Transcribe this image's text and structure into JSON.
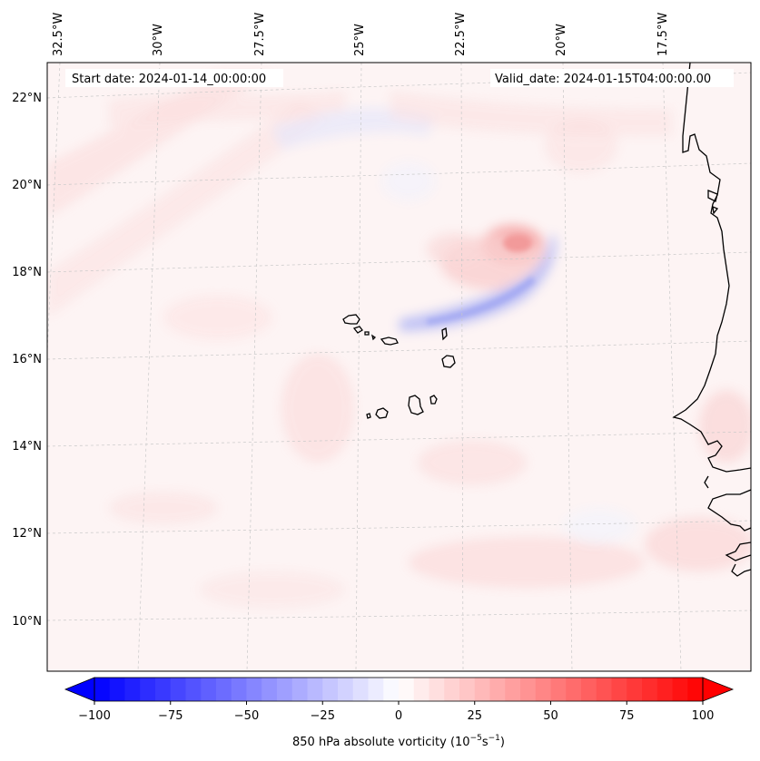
{
  "map": {
    "start_label": "Start date: 2024-01-14_00:00:00",
    "valid_label": "Valid_date: 2024-01-15T04:00:00.00",
    "lon_labels": [
      "32.5°W",
      "30°W",
      "27.5°W",
      "25°W",
      "22.5°W",
      "20°W",
      "17.5°W"
    ],
    "lat_labels": [
      "22°N",
      "20°N",
      "18°N",
      "16°N",
      "14°N",
      "12°N",
      "10°N"
    ]
  },
  "colorbar": {
    "min": -100,
    "max": 100,
    "tick_labels": [
      "−100",
      "−75",
      "−50",
      "−25",
      "0",
      "25",
      "50",
      "75",
      "100"
    ],
    "title_prefix": "850 hPa absolute vorticity (10",
    "title_exp1": "−5",
    "title_mid": "s",
    "title_exp2": "−1",
    "title_suffix": ")",
    "low_color": "#0000ff",
    "high_color": "#ff0000"
  }
}
